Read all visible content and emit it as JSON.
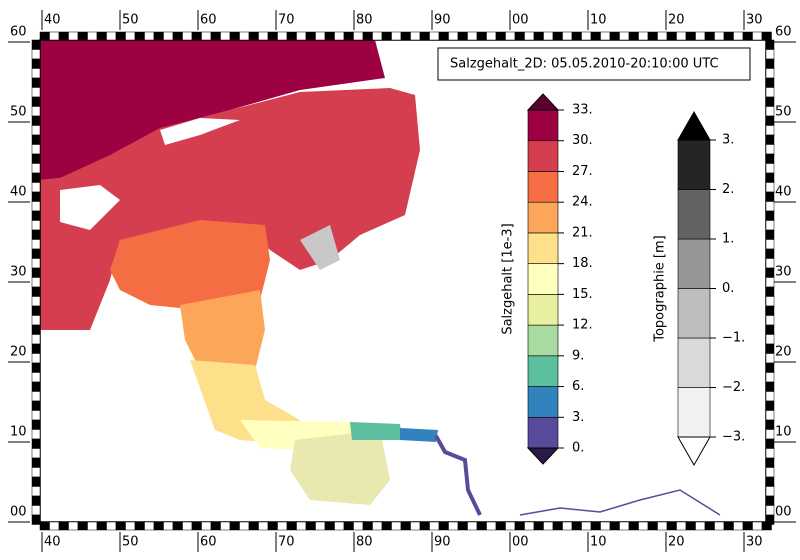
{
  "title": "Salzgehalt_2D: 05.05.2010-20:10:00 UTC",
  "x_labels": [
    "40",
    "50",
    "60",
    "70",
    "80",
    "90",
    "00",
    "10",
    "20",
    "30"
  ],
  "y_labels": [
    "60",
    "50",
    "40",
    "30",
    "20",
    "10",
    "00"
  ],
  "colorbars": [
    {
      "label": "Salzgehalt [1e-3]",
      "ticks": [
        "0.",
        "3.",
        "6.",
        "9.",
        "12.",
        "15.",
        "18.",
        "21.",
        "24.",
        "27.",
        "30.",
        "33."
      ],
      "colors": [
        "#5a4a9c",
        "#3182bd",
        "#5bbfa0",
        "#a8dba0",
        "#e8f0a0",
        "#ffffc0",
        "#fedf8a",
        "#fca65a",
        "#f46d43",
        "#d53e4f",
        "#9e0142"
      ],
      "under": "#2a1a4a",
      "over": "#5c0030"
    },
    {
      "label": "Topographie [m]",
      "ticks": [
        "−3.",
        "−2.",
        "−1.",
        "0.",
        "1.",
        "2.",
        "3."
      ],
      "colors": [
        "#f2f2f2",
        "#d9d9d9",
        "#bdbdbd",
        "#969696",
        "#636363",
        "#252525"
      ],
      "under": "#ffffff",
      "over": "#000000"
    }
  ]
}
